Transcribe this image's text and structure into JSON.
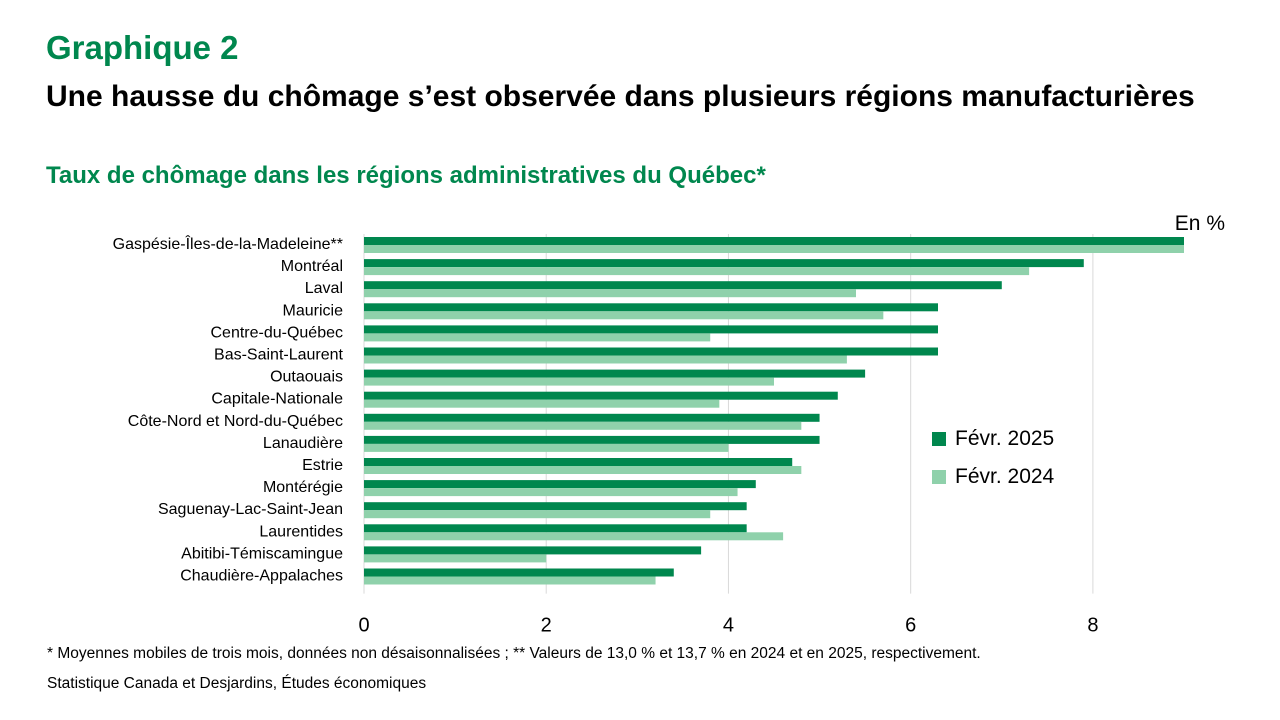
{
  "header": {
    "label": "Graphique 2",
    "title": "Une hausse du chômage s’est observée dans plusieurs régions manufacturières",
    "subtitle": "Taux de chômage dans les régions administratives du Québec*"
  },
  "chart_data": {
    "type": "bar",
    "orientation": "horizontal",
    "unit_label": "En %",
    "categories": [
      "Gaspésie-Îles-de-la-Madeleine**",
      "Montréal",
      "Laval",
      "Mauricie",
      "Centre-du-Québec",
      "Bas-Saint-Laurent",
      "Outaouais",
      "Capitale-Nationale",
      "Côte-Nord et Nord-du-Québec",
      "Lanaudière",
      "Estrie",
      "Montérégie",
      "Saguenay-Lac-Saint-Jean",
      "Laurentides",
      "Abitibi-Témiscamingue",
      "Chaudière-Appalaches"
    ],
    "series": [
      {
        "name": "Févr. 2025",
        "color": "#00874e",
        "values": [
          9,
          7.9,
          7.0,
          6.3,
          6.3,
          6.3,
          5.5,
          5.2,
          5.0,
          5.0,
          4.7,
          4.3,
          4.2,
          4.2,
          3.7,
          3.4
        ]
      },
      {
        "name": "Févr. 2024",
        "color": "#8fd1ab",
        "values": [
          9,
          7.3,
          5.4,
          5.7,
          3.8,
          5.3,
          4.5,
          3.9,
          4.8,
          4.0,
          4.8,
          4.1,
          3.8,
          4.6,
          2.0,
          3.2
        ]
      }
    ],
    "xlim": [
      0,
      9
    ],
    "xticks": [
      0,
      2,
      4,
      6,
      8
    ],
    "grid": true,
    "legend_position": "right"
  },
  "footnote": "* Moyennes mobiles de trois mois, données non désaisonnalisées ; ** Valeurs de 13,0 % et 13,7 % en 2024 et en 2025, respectivement.",
  "source": "Statistique Canada et Desjardins, Études économiques"
}
